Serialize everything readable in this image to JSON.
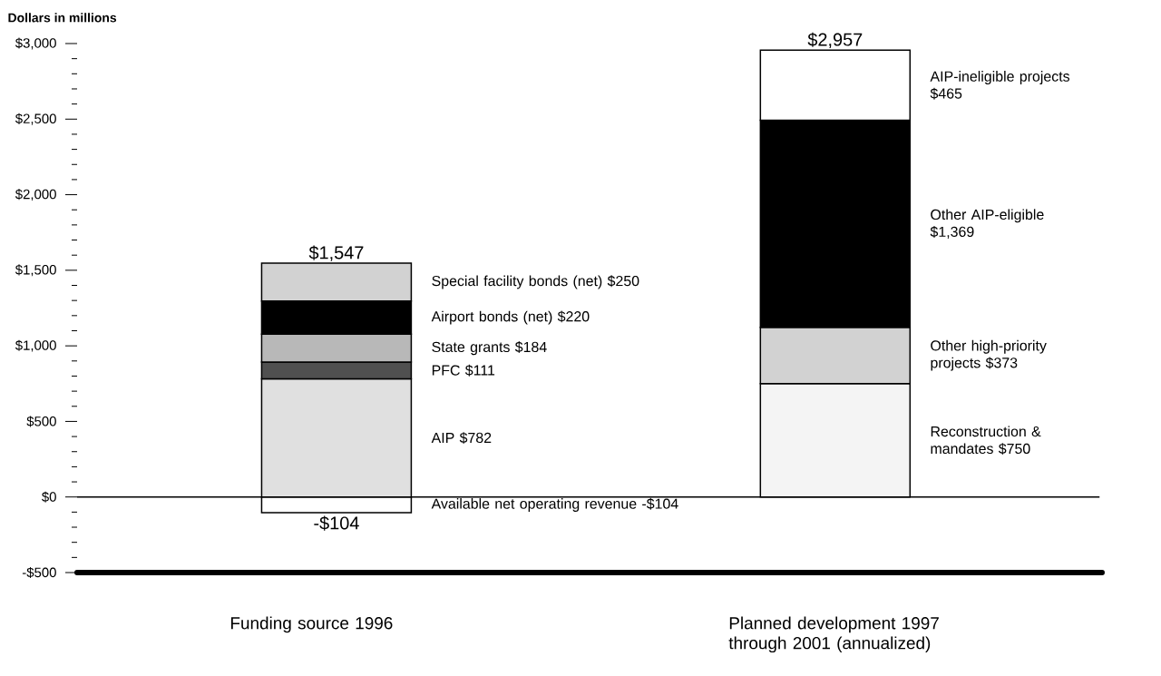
{
  "chart_data": {
    "type": "bar",
    "stacked": true,
    "ylabel": "Dollars in millions",
    "categories": [
      "Funding source 1996",
      "Planned development 1997 through 2001 (annualized)"
    ],
    "series": [
      {
        "name": "Available net operating revenue -$104",
        "color": "#ffffff",
        "values": [
          -104,
          null
        ],
        "value_labels": [
          "-$104",
          null
        ]
      },
      {
        "name": "AIP $782",
        "color": "#e0e0e0",
        "values": [
          782,
          null
        ]
      },
      {
        "name": "PFC  $111",
        "color": "#505050",
        "values": [
          111,
          null
        ]
      },
      {
        "name": "State grants $184",
        "color": "#b8b8b8",
        "values": [
          184,
          null
        ]
      },
      {
        "name": "Airport bonds (net) $220",
        "color": "#000000",
        "values": [
          220,
          null
        ]
      },
      {
        "name": "Special facility bonds (net) $250",
        "color": "#d2d2d2",
        "values": [
          250,
          null
        ]
      },
      {
        "name": "Reconstruction & mandates $750",
        "color": "#f4f4f4",
        "values": [
          null,
          750
        ]
      },
      {
        "name": "Other high-priority projects $373",
        "color": "#d2d2d2",
        "values": [
          null,
          373
        ]
      },
      {
        "name": "Other AIP-eligible $1,369",
        "color": "#000000",
        "values": [
          null,
          1369
        ]
      },
      {
        "name": "AIP-ineligible projects $465",
        "color": "#ffffff",
        "values": [
          null,
          465
        ]
      }
    ],
    "annotations": [
      {
        "text": "$1,547",
        "x": "Funding source 1996",
        "y": 1547
      },
      {
        "text": "$2,957",
        "x": "Planned development 1997 through 2001 (annualized)",
        "y": 2957
      }
    ],
    "ylim": [
      -500,
      3000
    ],
    "yticks": [
      {
        "value": -500,
        "label": "-$500"
      },
      {
        "value": 0,
        "label": "$0"
      },
      {
        "value": 500,
        "label": "$500"
      },
      {
        "value": 1000,
        "label": "$1,000"
      },
      {
        "value": 1500,
        "label": "$1,500"
      },
      {
        "value": 2000,
        "label": "$2,000"
      },
      {
        "value": 2500,
        "label": "$2,500"
      },
      {
        "value": 3000,
        "label": "$3,000"
      }
    ],
    "ref_lines": [
      {
        "axis": "y",
        "value": 0
      }
    ]
  }
}
